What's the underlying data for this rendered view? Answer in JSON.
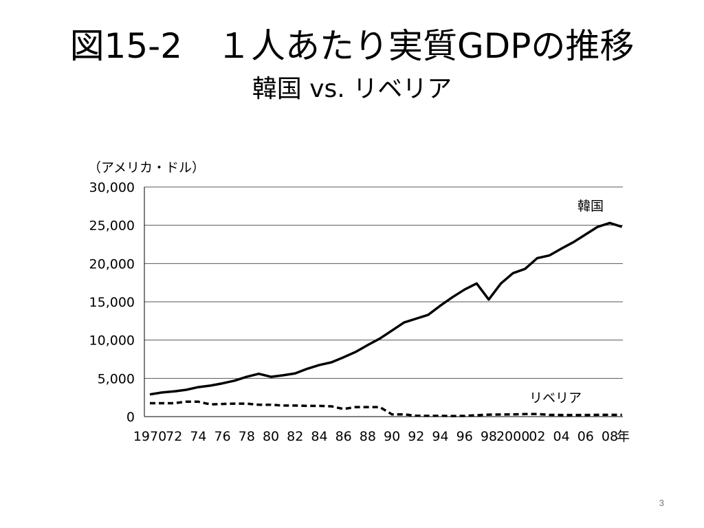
{
  "slide": {
    "title": "図15-2　１人あたり実質GDPの推移",
    "subtitle": "韓国 vs. リベリア",
    "page_number": "3"
  },
  "chart_data": {
    "type": "line",
    "unit_label": "（アメリカ・ドル）",
    "x_suffix_label": "年",
    "ylim": [
      0,
      30000
    ],
    "y_ticks": [
      {
        "value": 0,
        "label": "0"
      },
      {
        "value": 5000,
        "label": "5,000"
      },
      {
        "value": 10000,
        "label": "10,000"
      },
      {
        "value": 15000,
        "label": "15,000"
      },
      {
        "value": 20000,
        "label": "20,000"
      },
      {
        "value": 25000,
        "label": "25,000"
      },
      {
        "value": 30000,
        "label": "30,000"
      }
    ],
    "x_ticks": [
      {
        "year": 1970,
        "label": "1970"
      },
      {
        "year": 1972,
        "label": "72"
      },
      {
        "year": 1974,
        "label": "74"
      },
      {
        "year": 1976,
        "label": "76"
      },
      {
        "year": 1978,
        "label": "78"
      },
      {
        "year": 1980,
        "label": "80"
      },
      {
        "year": 1982,
        "label": "82"
      },
      {
        "year": 1984,
        "label": "84"
      },
      {
        "year": 1986,
        "label": "86"
      },
      {
        "year": 1988,
        "label": "88"
      },
      {
        "year": 1990,
        "label": "90"
      },
      {
        "year": 1992,
        "label": "92"
      },
      {
        "year": 1994,
        "label": "94"
      },
      {
        "year": 1996,
        "label": "96"
      },
      {
        "year": 1998,
        "label": "98"
      },
      {
        "year": 2000,
        "label": "2000"
      },
      {
        "year": 2002,
        "label": "02"
      },
      {
        "year": 2004,
        "label": "04"
      },
      {
        "year": 2006,
        "label": "06"
      },
      {
        "year": 2008,
        "label": "08"
      }
    ],
    "grid": true,
    "x": [
      1970,
      1971,
      1972,
      1973,
      1974,
      1975,
      1976,
      1977,
      1978,
      1979,
      1980,
      1981,
      1982,
      1983,
      1984,
      1985,
      1986,
      1987,
      1988,
      1989,
      1990,
      1991,
      1992,
      1993,
      1994,
      1995,
      1996,
      1997,
      1998,
      1999,
      2000,
      2001,
      2002,
      2003,
      2004,
      2005,
      2006,
      2007,
      2008,
      2009
    ],
    "series": [
      {
        "name": "韓国",
        "style": "solid",
        "color": "#000000",
        "values": [
          2900,
          3150,
          3300,
          3500,
          3850,
          4050,
          4350,
          4700,
          5200,
          5600,
          5200,
          5400,
          5650,
          6250,
          6750,
          7100,
          7750,
          8450,
          9350,
          10200,
          11250,
          12300,
          12800,
          13300,
          14500,
          15600,
          16600,
          17400,
          15300,
          17400,
          18750,
          19300,
          20700,
          21050,
          21950,
          22800,
          23800,
          24800,
          25300,
          24800
        ]
      },
      {
        "name": "リベリア",
        "style": "dashed",
        "color": "#000000",
        "values": [
          1750,
          1750,
          1750,
          1950,
          1950,
          1600,
          1650,
          1700,
          1700,
          1550,
          1550,
          1450,
          1450,
          1400,
          1400,
          1350,
          1000,
          1250,
          1250,
          1250,
          300,
          300,
          120,
          100,
          100,
          80,
          90,
          190,
          260,
          280,
          300,
          330,
          330,
          230,
          220,
          220,
          220,
          230,
          240,
          230
        ]
      }
    ]
  }
}
